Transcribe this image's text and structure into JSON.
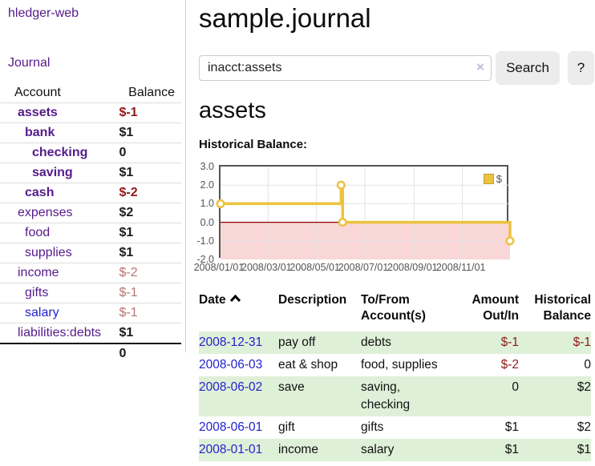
{
  "app": {
    "brand": "hledger-web",
    "nav": {
      "journal": "Journal"
    }
  },
  "colors": {
    "link_purple": "#551a8b",
    "link_blue": "#2222cc",
    "negative_strong": "#8f1a1a",
    "negative_weak": "#b97272",
    "row_green": "#dff0d8",
    "chart_line": "#edc240"
  },
  "sidebar": {
    "header": {
      "account": "Account",
      "balance": "Balance"
    },
    "accounts": [
      {
        "name": "assets",
        "balance": "$-1",
        "depth": 1
      },
      {
        "name": "bank",
        "balance": "$1",
        "depth": 2
      },
      {
        "name": "checking",
        "balance": "0",
        "depth": 3
      },
      {
        "name": "saving",
        "balance": "$1",
        "depth": 3
      },
      {
        "name": "cash",
        "balance": "$-2",
        "depth": 2
      },
      {
        "name": "expenses",
        "balance": "$2",
        "depth": 1
      },
      {
        "name": "food",
        "balance": "$1",
        "depth": 2
      },
      {
        "name": "supplies",
        "balance": "$1",
        "depth": 2
      },
      {
        "name": "income",
        "balance": "$-2",
        "depth": 1
      },
      {
        "name": "gifts",
        "balance": "$-1",
        "depth": 2
      },
      {
        "name": "salary",
        "balance": "$-1",
        "depth": 2
      },
      {
        "name": "liabilities:debts",
        "balance": "$1",
        "depth": 1
      }
    ],
    "total": "0"
  },
  "main": {
    "title": "sample.journal",
    "search": {
      "value": "inacct:assets",
      "clear_icon": "×",
      "search_button": "Search",
      "help_button": "?"
    },
    "account_heading": "assets",
    "chart_label": "Historical Balance:"
  },
  "chart_data": {
    "type": "line",
    "style": "step",
    "title": "Historical Balance:",
    "series": [
      {
        "name": "$",
        "color": "#edc240",
        "points": [
          {
            "date": "2008-01-01",
            "value": 1
          },
          {
            "date": "2008-06-01",
            "value": 2
          },
          {
            "date": "2008-06-03",
            "value": 0
          },
          {
            "date": "2008-12-31",
            "value": -1
          }
        ]
      }
    ],
    "x_range": [
      "2008-01-01",
      "2008-12-31"
    ],
    "x_ticks": [
      "2008/01/01",
      "2008/03/01",
      "2008/05/01",
      "2008/07/01",
      "2008/09/01",
      "2008/11/01"
    ],
    "y_ticks": [
      "3.0",
      "2.0",
      "1.0",
      "0.0",
      "-1.0",
      "-2.0"
    ],
    "ylim": [
      -2,
      3
    ],
    "grid": true,
    "grid_color": "#e2e2e2",
    "border_color": "#545454",
    "zero_line_color": "#8b0000",
    "negative_region_color": "#f9d7d7",
    "legend": {
      "label": "$",
      "swatch_color": "#edc240",
      "position": "top-right"
    }
  },
  "register": {
    "headers": {
      "date": "Date",
      "description": "Description",
      "accounts": "To/From\nAccount(s)",
      "amount": "Amount\nOut/In",
      "balance": "Historical\nBalance"
    },
    "sort": {
      "column": "date",
      "direction": "ascending-icon-shown"
    },
    "rows": [
      {
        "date": "2008-12-31",
        "description": "pay off",
        "accounts": "debts",
        "amount": "$-1",
        "balance": "$-1"
      },
      {
        "date": "2008-06-03",
        "description": "eat & shop",
        "accounts": "food, supplies",
        "amount": "$-2",
        "balance": "0"
      },
      {
        "date": "2008-06-02",
        "description": "save",
        "accounts": "saving,\nchecking",
        "amount": "0",
        "balance": "$2"
      },
      {
        "date": "2008-06-01",
        "description": "gift",
        "accounts": "gifts",
        "amount": "$1",
        "balance": "$2"
      },
      {
        "date": "2008-01-01",
        "description": "income",
        "accounts": "salary",
        "amount": "$1",
        "balance": "$1"
      }
    ]
  }
}
